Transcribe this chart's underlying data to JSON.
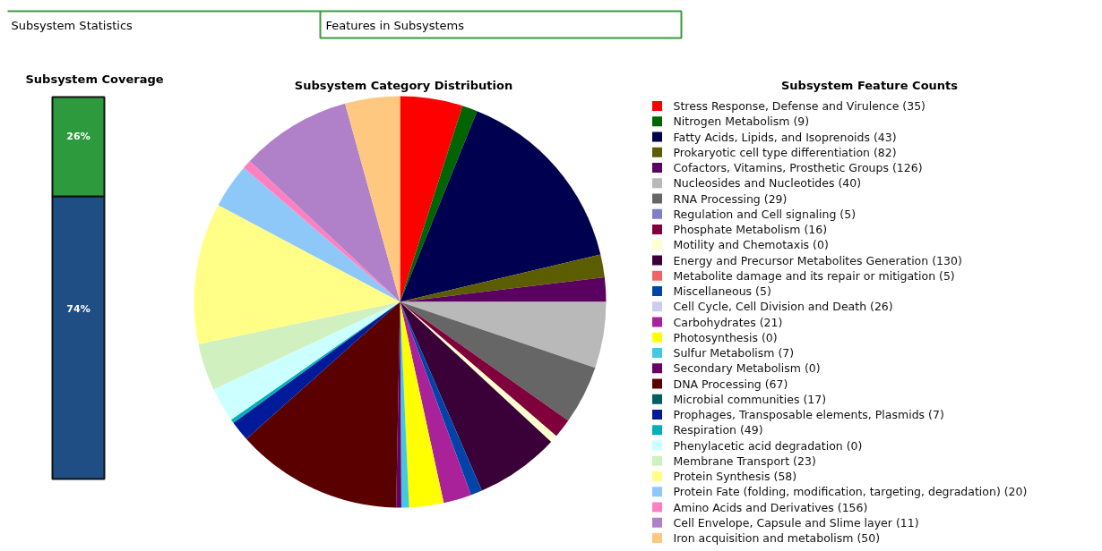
{
  "chart_data": [
    {
      "type": "bar",
      "title": "Subsystem Coverage",
      "stacked": true,
      "categories": [
        null
      ],
      "ylim": [
        0,
        100
      ],
      "tick_labels": false,
      "annotations": [
        "Subsystem Statistics",
        "Features in Subsystems"
      ],
      "series": [
        {
          "color": "#1f4e85",
          "values": [
            74
          ],
          "value_labels": [
            "74%"
          ]
        },
        {
          "color": "#2e9a3e",
          "values": [
            26
          ],
          "value_labels": [
            "26%"
          ]
        }
      ]
    },
    {
      "type": "pie",
      "title": "Subsystem Category Distribution",
      "legend_title": "Subsystem Feature Counts",
      "legend": "right",
      "categories": [
        "Stress Response, Defense and Virulence (35)",
        "Nitrogen Metabolism (9)",
        "Fatty Acids, Lipids, and Isoprenoids (43)",
        "Prokaryotic cell type differentiation (82)",
        "Cofactors, Vitamins, Prosthetic Groups (126)",
        "Nucleosides and Nucleotides (40)",
        "RNA Processing (29)",
        "Regulation and Cell signaling (5)",
        "Phosphate Metabolism (16)",
        "Motility and Chemotaxis (0)",
        "Energy and Precursor Metabolites Generation (130)",
        "Metabolite damage and its repair or mitigation (5)",
        "Miscellaneous (5)",
        "Cell Cycle, Cell Division and Death (26)",
        "Carbohydrates (21)",
        "Photosynthesis (0)",
        "Sulfur Metabolism (7)",
        "Secondary Metabolism (0)",
        "DNA Processing (67)",
        "Microbial communities (17)",
        "Prophages, Transposable elements, Plasmids (7)",
        "Respiration (49)",
        "Phenylacetic acid degradation (0)",
        "Membrane Transport (23)",
        "Protein Synthesis (58)",
        "Protein Fate (folding, modification, targeting, degradation) (20)",
        "Amino Acids and Derivatives (156)",
        "Cell Envelope, Capsule and Slime layer (11)",
        "Iron acquisition and metabolism (50)"
      ],
      "values": [
        4.9,
        1.2,
        15.2,
        1.8,
        1.9,
        5.2,
        4.6,
        0,
        1.5,
        0.6,
        6.6,
        0,
        0.9,
        0,
        2.2,
        2.7,
        0.6,
        0.4,
        13.1,
        0,
        1.6,
        0.3,
        2.7,
        3.7,
        11.1,
        3.5,
        0.7,
        8.7,
        4.3
      ],
      "colors": [
        "#ff0000",
        "#006400",
        "#000050",
        "#5c5c00",
        "#5a0060",
        "#b9b9b9",
        "#666666",
        "#8080c8",
        "#80003c",
        "#ffffd0",
        "#3a0038",
        "#f06464",
        "#0044aa",
        "#ccccee",
        "#aa2299",
        "#ffff00",
        "#44c8e0",
        "#660066",
        "#5a0000",
        "#006060",
        "#001a99",
        "#00b0b8",
        "#ccffff",
        "#d0f0c0",
        "#ffff88",
        "#8ec8f8",
        "#ff80c0",
        "#b080c8",
        "#ffc880"
      ]
    }
  ]
}
